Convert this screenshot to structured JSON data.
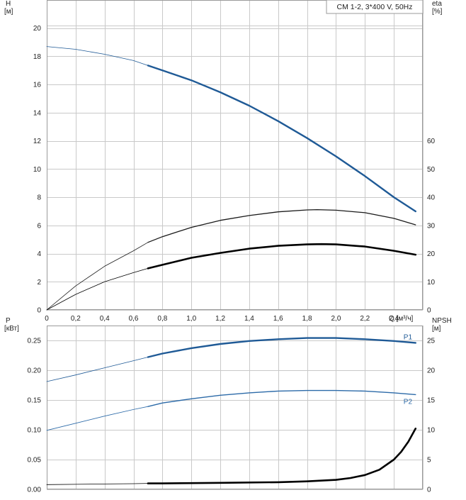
{
  "chart_data": [
    {
      "type": "line",
      "title": "CM 1-2, 3*400 V, 50Hz",
      "xlabel": "Q [м³/ч]",
      "xlim": [
        0,
        2.6
      ],
      "xticks": [
        0,
        0.2,
        0.4,
        0.6,
        0.8,
        1.0,
        1.2,
        1.4,
        1.6,
        1.8,
        2.0,
        2.2,
        2.4
      ],
      "xtick_labels": [
        "0",
        "0,2",
        "0,4",
        "0,6",
        "0,8",
        "1,0",
        "1,2",
        "1,4",
        "1,6",
        "1,8",
        "2,0",
        "2,2",
        "2,4"
      ],
      "y_left": {
        "label_line1": "H",
        "label_line2": "[м]",
        "lim": [
          0,
          22
        ],
        "ticks": [
          0,
          2,
          4,
          6,
          8,
          10,
          12,
          14,
          16,
          18,
          20
        ],
        "tick_labels": [
          "0",
          "2",
          "4",
          "6",
          "8",
          "10",
          "12",
          "14",
          "16",
          "18",
          "20"
        ]
      },
      "y_right": {
        "label_line1": "eta",
        "label_line2": "[%]",
        "lim": [
          0,
          110
        ],
        "ticks": [
          0,
          10,
          20,
          30,
          40,
          50,
          60
        ],
        "tick_labels": [
          "0",
          "10",
          "20",
          "30",
          "40",
          "50",
          "60"
        ]
      },
      "grid": true,
      "series": [
        {
          "axis": "left",
          "color": "#1f5a96",
          "x": [
            0,
            0.2,
            0.4,
            0.6,
            0.7,
            0.8,
            1.0,
            1.2,
            1.4,
            1.6,
            1.8,
            2.0,
            2.2,
            2.4,
            2.55
          ],
          "y": [
            18.7,
            18.5,
            18.15,
            17.7,
            17.35,
            17.0,
            16.3,
            15.45,
            14.5,
            13.4,
            12.2,
            10.9,
            9.5,
            8.0,
            7.0
          ]
        },
        {
          "axis": "right",
          "color": "#1a1a1a",
          "x": [
            0,
            0.2,
            0.4,
            0.6,
            0.7,
            0.8,
            1.0,
            1.2,
            1.4,
            1.6,
            1.8,
            1.87,
            2.0,
            2.2,
            2.4,
            2.55
          ],
          "y": [
            0,
            8.5,
            15.5,
            21.0,
            24.0,
            26.0,
            29.3,
            31.8,
            33.5,
            34.8,
            35.5,
            35.6,
            35.4,
            34.5,
            32.5,
            30.2
          ]
        },
        {
          "axis": "left",
          "color": "#000000",
          "x": [
            0,
            0.2,
            0.4,
            0.6,
            0.7,
            0.8,
            1.0,
            1.2,
            1.4,
            1.6,
            1.8,
            1.9,
            2.0,
            2.2,
            2.4,
            2.55
          ],
          "y": [
            0,
            1.1,
            2.0,
            2.65,
            2.95,
            3.2,
            3.7,
            4.05,
            4.35,
            4.55,
            4.65,
            4.67,
            4.65,
            4.5,
            4.2,
            3.92
          ]
        }
      ]
    },
    {
      "type": "line",
      "x_ticks_shared": true,
      "y_left": {
        "label_line1": "P",
        "label_line2": "[кВт]",
        "lim": [
          0,
          0.275
        ],
        "ticks": [
          0,
          0.05,
          0.1,
          0.15,
          0.2,
          0.25
        ],
        "tick_labels": [
          "0.00",
          "0.05",
          "0.10",
          "0.15",
          "0.20",
          "0.25"
        ]
      },
      "y_right": {
        "label_line1": "NPSH",
        "label_line2": "[м]",
        "lim": [
          0,
          27.5
        ],
        "ticks": [
          0,
          5,
          10,
          15,
          20,
          25
        ],
        "tick_labels": [
          "0",
          "5",
          "10",
          "15",
          "20",
          "25"
        ]
      },
      "grid": true,
      "series": [
        {
          "name": "P1",
          "axis": "left",
          "color": "#1f5a96",
          "x": [
            0,
            0.2,
            0.4,
            0.6,
            0.7,
            0.8,
            1.0,
            1.2,
            1.4,
            1.6,
            1.8,
            2.0,
            2.2,
            2.4,
            2.55
          ],
          "y": [
            0.181,
            0.192,
            0.204,
            0.216,
            0.222,
            0.228,
            0.237,
            0.244,
            0.249,
            0.252,
            0.254,
            0.254,
            0.252,
            0.249,
            0.246
          ]
        },
        {
          "name": "P2",
          "axis": "left",
          "color": "#2c6aa8",
          "x": [
            0,
            0.2,
            0.4,
            0.6,
            0.7,
            0.8,
            1.0,
            1.2,
            1.4,
            1.6,
            1.8,
            2.0,
            2.2,
            2.4,
            2.55
          ],
          "y": [
            0.099,
            0.111,
            0.123,
            0.134,
            0.139,
            0.145,
            0.152,
            0.158,
            0.162,
            0.165,
            0.166,
            0.166,
            0.165,
            0.162,
            0.159
          ]
        },
        {
          "axis": "right",
          "color": "#000000",
          "x": [
            0,
            0.2,
            0.4,
            0.6,
            0.7,
            0.8,
            1.0,
            1.2,
            1.4,
            1.6,
            1.8,
            2.0,
            2.1,
            2.2,
            2.3,
            2.4,
            2.45,
            2.5,
            2.55
          ],
          "y": [
            0.8,
            0.85,
            0.9,
            0.95,
            1.0,
            1.0,
            1.05,
            1.1,
            1.15,
            1.2,
            1.35,
            1.6,
            1.9,
            2.4,
            3.3,
            5.0,
            6.3,
            8.0,
            10.2
          ]
        }
      ]
    }
  ]
}
